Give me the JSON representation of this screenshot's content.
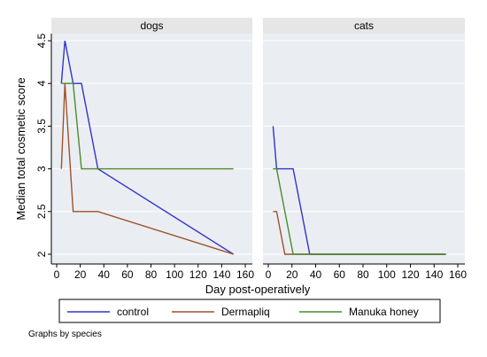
{
  "chart_data": {
    "type": "line",
    "ylabel": "Median total cosmetic score",
    "xlabel": "Day post-operatively",
    "note": "Graphs by species",
    "xlim": [
      0,
      160
    ],
    "ylim": [
      2,
      4.5
    ],
    "x_ticks": [
      0,
      20,
      40,
      60,
      80,
      100,
      120,
      140,
      160
    ],
    "y_ticks": [
      2,
      2.5,
      3,
      3.5,
      4,
      4.5
    ],
    "grid": true,
    "legend_position": "bottom",
    "legend": [
      "control",
      "Dermapliq",
      "Manuka honey"
    ],
    "colors": {
      "control": "#3333cc",
      "Dermapliq": "#a0522d",
      "Manuka honey": "#4f8a2f",
      "panel_bg": "#eaeef3",
      "strip_bg": "#e6e6e6"
    },
    "panels": [
      {
        "title": "dogs",
        "series": [
          {
            "name": "control",
            "x": [
              4,
              7,
              14,
              21,
              35,
              150
            ],
            "y": [
              4,
              4.5,
              4,
              4,
              3,
              2
            ]
          },
          {
            "name": "Dermapliq",
            "x": [
              4,
              7,
              14,
              21,
              35,
              150
            ],
            "y": [
              3,
              4,
              2.5,
              2.5,
              2.5,
              2
            ]
          },
          {
            "name": "Manuka honey",
            "x": [
              4,
              7,
              14,
              21,
              35,
              150
            ],
            "y": [
              4,
              4,
              4,
              3,
              3,
              3
            ]
          }
        ]
      },
      {
        "title": "cats",
        "series": [
          {
            "name": "control",
            "x": [
              4,
              7,
              14,
              21,
              35,
              150
            ],
            "y": [
              3.5,
              3,
              3,
              3,
              2,
              2
            ]
          },
          {
            "name": "Dermapliq",
            "x": [
              4,
              7,
              14,
              21,
              35,
              150
            ],
            "y": [
              2.5,
              2.5,
              2,
              2,
              2,
              2
            ]
          },
          {
            "name": "Manuka honey",
            "x": [
              4,
              7,
              14,
              21,
              35,
              150
            ],
            "y": [
              3,
              3,
              2.5,
              2,
              2,
              2
            ]
          }
        ]
      }
    ]
  }
}
